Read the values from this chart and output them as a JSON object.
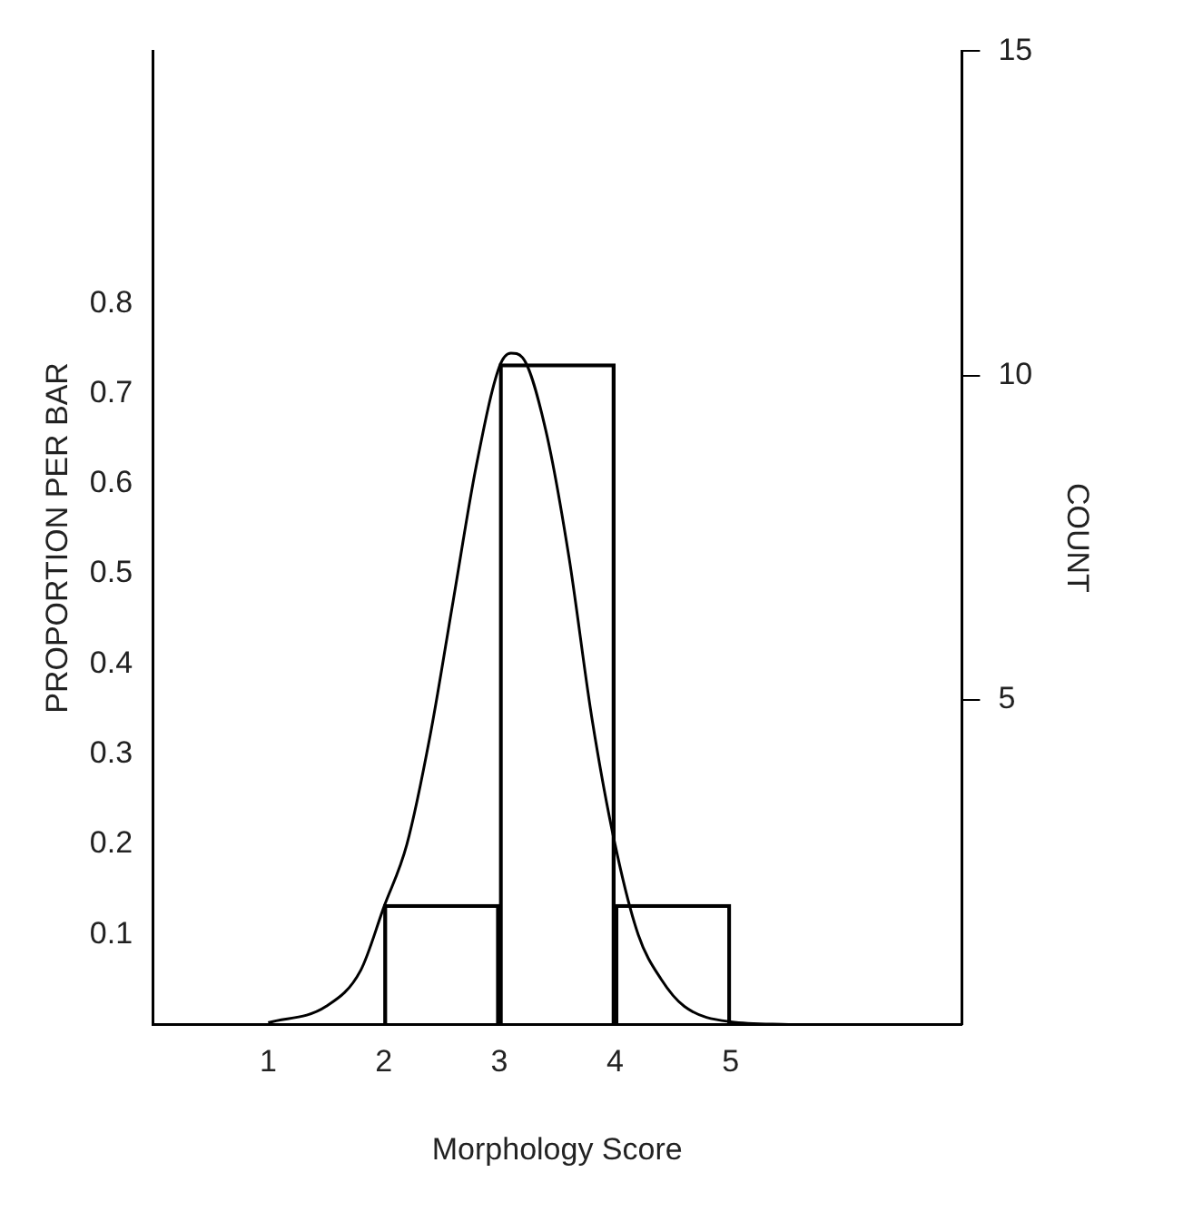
{
  "chart_data": {
    "type": "bar",
    "xlabel": "Morphology Score",
    "ylabel": "PROPORTION PER BAR",
    "y2label": "COUNT",
    "series": [
      {
        "color": "#000000",
        "x": [
          2.5,
          3.5,
          4.5
        ],
        "values": [
          0.133,
          0.733,
          0.133
        ]
      },
      {
        "type": "line",
        "color": "#000000",
        "x": [
          1.0,
          1.5,
          1.8,
          2.0,
          2.2,
          2.4,
          2.6,
          2.8,
          3.0,
          3.1,
          3.2,
          3.4,
          3.6,
          3.8,
          4.0,
          4.2,
          4.4,
          4.6,
          5.0,
          5.5
        ],
        "values": [
          0.002,
          0.02,
          0.06,
          0.13,
          0.2,
          0.32,
          0.47,
          0.62,
          0.73,
          0.745,
          0.74,
          0.66,
          0.52,
          0.34,
          0.2,
          0.1,
          0.05,
          0.02,
          0.003,
          0.0
        ]
      }
    ],
    "xlim": [
      0,
      7
    ],
    "xticks": [
      1,
      2,
      3,
      4,
      5
    ],
    "ylim": [
      0,
      1.08
    ],
    "yticks": [
      0.1,
      0.2,
      0.3,
      0.4,
      0.5,
      0.6,
      0.7,
      0.8
    ],
    "y2lim": [
      0,
      15
    ],
    "y2ticks": [
      5,
      10,
      15
    ],
    "grid": false,
    "legend": false,
    "marker": "none",
    "line_style": "solid"
  }
}
